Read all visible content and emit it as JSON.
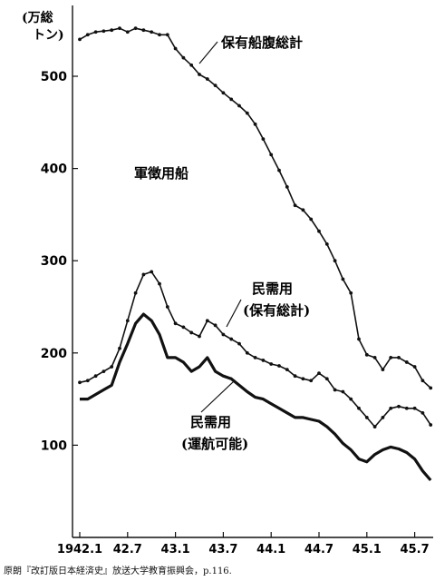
{
  "chart_data": {
    "type": "line",
    "title": "",
    "unit_label": [
      "(万総",
      "トン)"
    ],
    "xlabel": "",
    "ylabel": "",
    "ylim": [
      0,
      600
    ],
    "yticks": [
      100,
      200,
      300,
      400,
      500
    ],
    "xlim": [
      0,
      45
    ],
    "xticks": [
      {
        "x": 0,
        "label": "1942.1"
      },
      {
        "x": 6,
        "label": "42.7"
      },
      {
        "x": 12,
        "label": "43.1"
      },
      {
        "x": 18,
        "label": "43.7"
      },
      {
        "x": 24,
        "label": "44.1"
      },
      {
        "x": 30,
        "label": "44.7"
      },
      {
        "x": 36,
        "label": "45.1"
      },
      {
        "x": 42,
        "label": "45.7"
      }
    ],
    "grid": false,
    "series": [
      {
        "name": "保有船腹総計",
        "style": "dotted-thin",
        "x": [
          0,
          1,
          2,
          3,
          4,
          5,
          6,
          7,
          8,
          9,
          10,
          11,
          12,
          13,
          14,
          15,
          16,
          17,
          18,
          19,
          20,
          21,
          22,
          23,
          24,
          25,
          26,
          27,
          28,
          29,
          30,
          31,
          32,
          33,
          34,
          35,
          36,
          37,
          38,
          39,
          40,
          41,
          42,
          43,
          44
        ],
        "values": [
          540,
          545,
          548,
          549,
          550,
          552,
          548,
          552,
          550,
          548,
          545,
          545,
          530,
          520,
          512,
          502,
          497,
          490,
          482,
          475,
          468,
          460,
          448,
          432,
          415,
          398,
          380,
          360,
          355,
          345,
          332,
          318,
          300,
          280,
          265,
          215,
          198,
          195,
          182,
          195,
          195,
          190,
          185,
          170,
          162
        ]
      },
      {
        "name": "民需用(保有総計)",
        "style": "dotted-thin",
        "x": [
          0,
          1,
          2,
          3,
          4,
          5,
          6,
          7,
          8,
          9,
          10,
          11,
          12,
          13,
          14,
          15,
          16,
          17,
          18,
          19,
          20,
          21,
          22,
          23,
          24,
          25,
          26,
          27,
          28,
          29,
          30,
          31,
          32,
          33,
          34,
          35,
          36,
          37,
          38,
          39,
          40,
          41,
          42,
          43,
          44
        ],
        "values": [
          168,
          170,
          175,
          180,
          185,
          205,
          235,
          265,
          285,
          288,
          275,
          250,
          232,
          228,
          222,
          218,
          235,
          230,
          220,
          215,
          210,
          200,
          195,
          192,
          188,
          186,
          182,
          175,
          172,
          170,
          178,
          172,
          160,
          158,
          150,
          140,
          130,
          120,
          130,
          140,
          142,
          140,
          140,
          135,
          122
        ]
      },
      {
        "name": "民需用(運航可能)",
        "style": "solid-thick",
        "x": [
          0,
          1,
          2,
          3,
          4,
          5,
          6,
          7,
          8,
          9,
          10,
          11,
          12,
          13,
          14,
          15,
          16,
          17,
          18,
          19,
          20,
          21,
          22,
          23,
          24,
          25,
          26,
          27,
          28,
          29,
          30,
          31,
          32,
          33,
          34,
          35,
          36,
          37,
          38,
          39,
          40,
          41,
          42,
          43,
          44
        ],
        "values": [
          150,
          150,
          155,
          160,
          165,
          190,
          210,
          232,
          242,
          235,
          220,
          195,
          195,
          190,
          180,
          185,
          195,
          180,
          175,
          172,
          165,
          158,
          152,
          150,
          145,
          140,
          135,
          130,
          130,
          128,
          126,
          120,
          112,
          102,
          95,
          85,
          82,
          90,
          95,
          98,
          96,
          92,
          85,
          72,
          62
        ]
      }
    ],
    "annotations": {
      "total": "保有船腹総計",
      "military": "軍徴用船",
      "civil_total_line1": "民需用",
      "civil_total_line2": "(保有総計)",
      "civil_op_line1": "民需用",
      "civil_op_line2": "(運航可能)"
    },
    "source": "原朗『改訂版日本経済史』放送大学教育振興会，p.116."
  }
}
